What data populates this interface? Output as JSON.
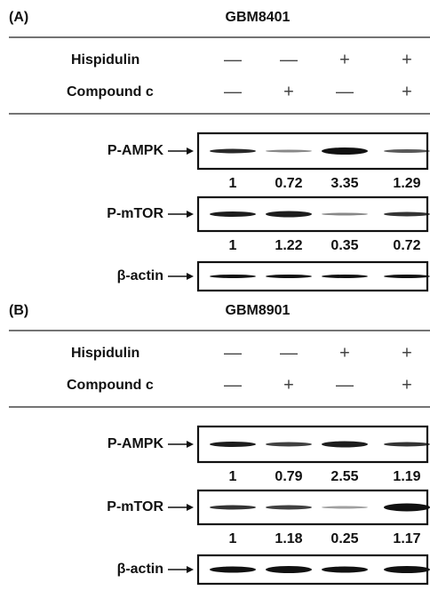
{
  "panels": [
    {
      "label": "(A)",
      "cell_line": "GBM8401",
      "treatments": [
        {
          "name": "Hispidulin",
          "signs": [
            "—",
            "—",
            "+",
            "+"
          ]
        },
        {
          "name": "Compound c",
          "signs": [
            "—",
            "+",
            "—",
            "+"
          ]
        }
      ],
      "blots": [
        {
          "label": "P-AMPK",
          "quantification": [
            1,
            0.72,
            3.35,
            1.29
          ]
        },
        {
          "label": "P-mTOR",
          "quantification": [
            1,
            1.22,
            0.35,
            0.72
          ]
        },
        {
          "label": "β-actin"
        }
      ]
    },
    {
      "label": "(B)",
      "cell_line": "GBM8901",
      "treatments": [
        {
          "name": "Hispidulin",
          "signs": [
            "—",
            "—",
            "+",
            "+"
          ]
        },
        {
          "name": "Compound c",
          "signs": [
            "—",
            "+",
            "—",
            "+"
          ]
        }
      ],
      "blots": [
        {
          "label": "P-AMPK",
          "quantification": [
            1,
            0.79,
            2.55,
            1.19
          ]
        },
        {
          "label": "P-mTOR",
          "quantification": [
            1,
            1.18,
            0.25,
            1.17
          ]
        },
        {
          "label": "β-actin"
        }
      ]
    }
  ]
}
